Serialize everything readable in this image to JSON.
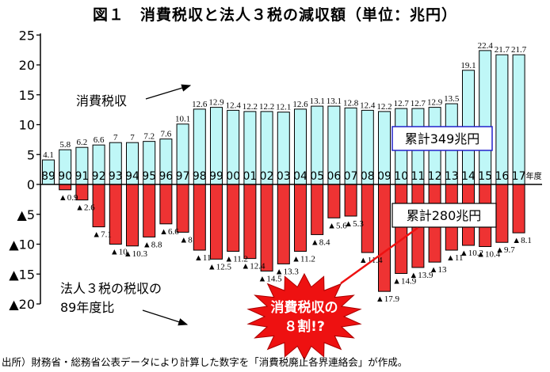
{
  "chart_data": {
    "type": "bar",
    "title": "図１　消費税収と法人３税の減収額（単位：兆円）",
    "categories": [
      "89",
      "90",
      "91",
      "92",
      "93",
      "94",
      "95",
      "96",
      "97",
      "98",
      "99",
      "00",
      "01",
      "02",
      "03",
      "04",
      "05",
      "06",
      "07",
      "08",
      "09",
      "10",
      "11",
      "12",
      "13",
      "14",
      "15",
      "16",
      "17"
    ],
    "category_suffix": "年度",
    "series": [
      {
        "name": "消費税収",
        "color": "#bff7f7",
        "values": [
          4.1,
          5.8,
          6.2,
          6.6,
          7,
          7,
          7.2,
          7.6,
          10.1,
          12.6,
          12.9,
          12.4,
          12.2,
          12.2,
          12.1,
          12.6,
          13.1,
          13.1,
          12.8,
          12.4,
          12.2,
          12.7,
          12.7,
          12.9,
          13.5,
          19.1,
          22.4,
          21.7,
          21.7
        ],
        "labels": [
          "4.1",
          "5.8",
          "6.2",
          "6.6",
          "7",
          "7",
          "7.2",
          "7.6",
          "10.1",
          "12.6",
          "12.9",
          "12.4",
          "12.2",
          "12.2",
          "12.1",
          "12.6",
          "13.1",
          "13.1",
          "12.8",
          "12.4",
          "12.2",
          "12.7",
          "12.7",
          "12.9",
          "13.5",
          "19.1",
          "22.4",
          "21.7",
          "21.7"
        ]
      },
      {
        "name": "法人３税の税収の89年度比",
        "color": "#ee3333",
        "values": [
          0,
          -0.9,
          -2.6,
          -7.1,
          -10,
          -10.3,
          -8.8,
          -6.6,
          -8,
          -11,
          -12.5,
          -11.2,
          -12.4,
          -14.5,
          -13.3,
          -11.2,
          -8.4,
          -5.6,
          -5.3,
          -11.4,
          -17.9,
          -14.9,
          -13.9,
          -13,
          -11,
          -10.2,
          -10.4,
          -9.7,
          -8.1
        ],
        "labels": [
          "",
          "▲0.9",
          "▲2.6",
          "▲7.1",
          "▲10",
          "▲10.3",
          "▲8.8",
          "▲6.6",
          "▲8",
          "▲11",
          "▲12.5",
          "▲11.2",
          "▲12.4",
          "▲14.5",
          "▲13.3",
          "▲11.2",
          "▲8.4",
          "▲5.6",
          "▲5.3",
          "▲11.4",
          "▲17.9",
          "▲14.9",
          "▲13.9",
          "▲13",
          "▲11",
          "▲10.2",
          "▲10.4",
          "▲9.7",
          "▲8.1"
        ]
      }
    ],
    "ylim": [
      -20,
      25
    ],
    "yticks": [
      25,
      20,
      15,
      10,
      5,
      0,
      -5,
      -10,
      -15,
      -20
    ],
    "ytick_labels": [
      "25",
      "20",
      "15",
      "10",
      "5",
      "0",
      "▲5",
      "▲10",
      "▲15",
      "▲20"
    ],
    "grid": false,
    "annotations": {
      "consumption_label": "消費税収",
      "corporate_label_line1": "法人３税の税収の",
      "corporate_label_line2": "89年度比",
      "total_consumption": "累計349兆円",
      "total_corporate": "累計280兆円",
      "burst_line1": "消費税収の",
      "burst_line2": "８割!?"
    },
    "colors": {
      "consumption": "#bff7f7",
      "corporate": "#ee3333",
      "box_border": "#2222cc",
      "burst": "#ee1111"
    }
  },
  "source": "出所）財務省・総務省公表データにより計算した数字を「消費税廃止各界連絡会」が作成。"
}
